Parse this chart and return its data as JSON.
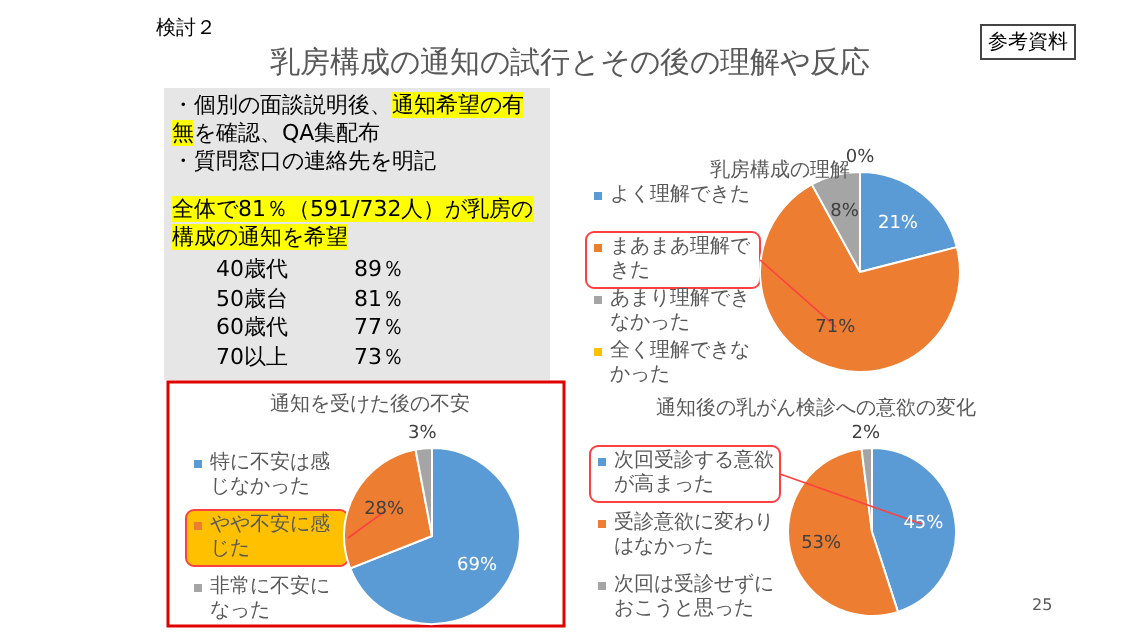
{
  "chart_data": [
    {
      "type": "other",
      "title": "乳房構成の通知の試行とその後の理解や反応",
      "subtitle": "検討２",
      "annotations": [
        "参考資料",
        "・個別の面談説明後、",
        "通知希望の有無",
        "を確認、QA集配布",
        "・質問窓口の連絡先を明記",
        "全体で81％（591/732人）が乳房の構成の通知を希望",
        "40歳代　　　89％",
        "50歳台　　　81％",
        "60歳代　　　77％",
        "70以上　　　73％",
        "25"
      ]
    },
    {
      "type": "pie",
      "title": "乳房構成の理解",
      "categories": [
        "よく理解できた",
        "まあまあ理解できた",
        "あまり理解できなかった",
        "全く理解できなかった"
      ],
      "values": [
        21,
        71,
        8,
        0
      ],
      "colors": [
        "#5b9bd5",
        "#ed7d31",
        "#a5a5a5",
        "#ffc000"
      ],
      "value_labels": [
        "21%",
        "71%",
        "8%",
        "0%"
      ],
      "legend": "left"
    },
    {
      "type": "pie",
      "title": "通知を受けた後の不安",
      "categories": [
        "特に不安は感じなかった",
        "やや不安に感じた",
        "非常に不安になった"
      ],
      "values": [
        69,
        28,
        3
      ],
      "colors": [
        "#5b9bd5",
        "#ed7d31",
        "#a5a5a5"
      ],
      "value_labels": [
        "69%",
        "28%",
        "3%"
      ],
      "legend": "left"
    },
    {
      "type": "pie",
      "title": "通知後の乳がん検診への意欲の変化",
      "categories": [
        "次回受診する意欲が高まった",
        "受診意欲に変わりはなかった",
        "次回は受診せずにおこうと思った"
      ],
      "values": [
        45,
        53,
        2
      ],
      "colors": [
        "#5b9bd5",
        "#ed7d31",
        "#a5a5a5"
      ],
      "value_labels": [
        "45%",
        "53%",
        "2%"
      ],
      "legend": "left"
    }
  ]
}
